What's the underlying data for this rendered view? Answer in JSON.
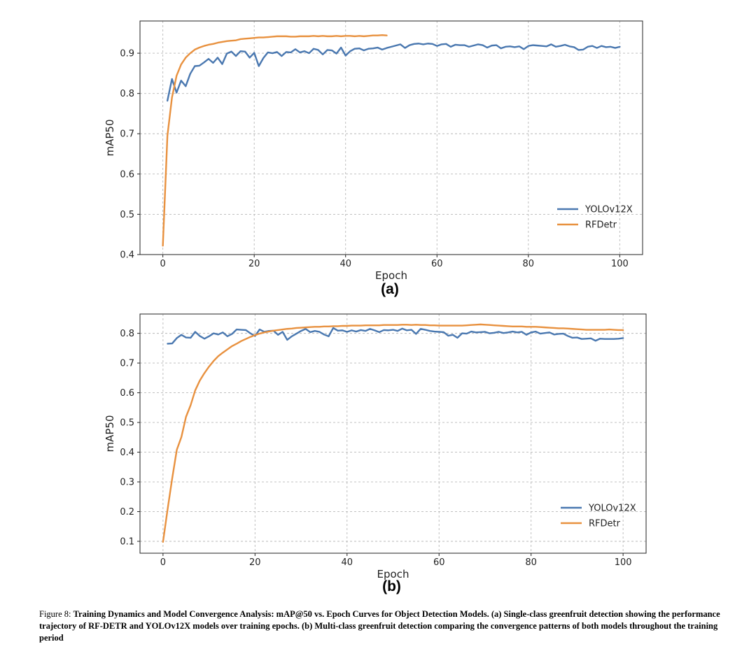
{
  "colors": {
    "yolo": "#4a78b0",
    "rfdetr": "#e8913f",
    "grid": "#b8b8b8",
    "axis": "#222222"
  },
  "chart_data": [
    {
      "type": "line",
      "panel_label": "(a)",
      "xlabel": "Epoch",
      "ylabel": "mAP50",
      "xlim": [
        -5,
        105
      ],
      "ylim": [
        0.4,
        0.98
      ],
      "xticks": [
        0,
        20,
        40,
        60,
        80,
        100
      ],
      "yticks": [
        0.4,
        0.5,
        0.6,
        0.7,
        0.8,
        0.9
      ],
      "ytick_labels": [
        "0.4",
        "0.5",
        "0.6",
        "0.7",
        "0.8",
        "0.9"
      ],
      "grid": true,
      "legend": "lower-right",
      "series": [
        {
          "name": "YOLOv12X",
          "x_start": 1,
          "values": [
            0.782,
            0.836,
            0.802,
            0.832,
            0.818,
            0.849,
            0.868,
            0.869,
            0.877,
            0.886,
            0.876,
            0.889,
            0.873,
            0.899,
            0.904,
            0.893,
            0.905,
            0.904,
            0.889,
            0.901,
            0.868,
            0.888,
            0.902,
            0.9,
            0.903,
            0.893,
            0.903,
            0.902,
            0.91,
            0.902,
            0.905,
            0.9,
            0.911,
            0.908,
            0.897,
            0.908,
            0.907,
            0.899,
            0.914,
            0.894,
            0.905,
            0.911,
            0.912,
            0.907,
            0.911,
            0.912,
            0.914,
            0.909,
            0.913,
            0.916,
            0.919,
            0.922,
            0.913,
            0.92,
            0.923,
            0.924,
            0.922,
            0.924,
            0.923,
            0.918,
            0.922,
            0.923,
            0.916,
            0.921,
            0.92,
            0.92,
            0.916,
            0.919,
            0.922,
            0.92,
            0.914,
            0.919,
            0.92,
            0.912,
            0.916,
            0.917,
            0.915,
            0.917,
            0.91,
            0.918,
            0.92,
            0.919,
            0.918,
            0.917,
            0.922,
            0.916,
            0.918,
            0.921,
            0.917,
            0.915,
            0.908,
            0.909,
            0.916,
            0.918,
            0.913,
            0.918,
            0.915,
            0.916,
            0.913,
            0.916
          ]
        },
        {
          "name": "RFDetr",
          "x_start": 0,
          "values": [
            0.422,
            0.695,
            0.79,
            0.844,
            0.872,
            0.889,
            0.9,
            0.909,
            0.914,
            0.918,
            0.921,
            0.923,
            0.926,
            0.928,
            0.93,
            0.931,
            0.932,
            0.935,
            0.936,
            0.937,
            0.938,
            0.939,
            0.939,
            0.94,
            0.941,
            0.942,
            0.942,
            0.942,
            0.941,
            0.941,
            0.942,
            0.942,
            0.942,
            0.943,
            0.942,
            0.943,
            0.942,
            0.942,
            0.943,
            0.942,
            0.943,
            0.943,
            0.942,
            0.943,
            0.942,
            0.943,
            0.944,
            0.944,
            0.945,
            0.944
          ]
        }
      ]
    },
    {
      "type": "line",
      "panel_label": "(b)",
      "xlabel": "Epoch",
      "ylabel": "mAP50",
      "xlim": [
        -5,
        105
      ],
      "ylim": [
        0.06,
        0.865
      ],
      "xticks": [
        0,
        20,
        40,
        60,
        80,
        100
      ],
      "yticks": [
        0.1,
        0.2,
        0.3,
        0.4,
        0.5,
        0.6,
        0.7,
        0.8
      ],
      "ytick_labels": [
        "0.1",
        "0.2",
        "0.3",
        "0.4",
        "0.5",
        "0.6",
        "0.7",
        "0.8"
      ],
      "grid": true,
      "legend": "lower-right",
      "series": [
        {
          "name": "YOLOv12X",
          "x_start": 1,
          "values": [
            0.765,
            0.766,
            0.784,
            0.795,
            0.786,
            0.785,
            0.805,
            0.791,
            0.782,
            0.79,
            0.8,
            0.796,
            0.803,
            0.79,
            0.798,
            0.813,
            0.812,
            0.811,
            0.8,
            0.791,
            0.813,
            0.805,
            0.808,
            0.809,
            0.795,
            0.805,
            0.778,
            0.79,
            0.799,
            0.808,
            0.815,
            0.804,
            0.808,
            0.805,
            0.796,
            0.79,
            0.818,
            0.809,
            0.81,
            0.805,
            0.81,
            0.806,
            0.811,
            0.808,
            0.815,
            0.81,
            0.804,
            0.811,
            0.81,
            0.812,
            0.808,
            0.816,
            0.81,
            0.812,
            0.798,
            0.815,
            0.812,
            0.808,
            0.806,
            0.805,
            0.804,
            0.792,
            0.795,
            0.785,
            0.8,
            0.799,
            0.806,
            0.803,
            0.804,
            0.805,
            0.8,
            0.802,
            0.805,
            0.801,
            0.803,
            0.806,
            0.803,
            0.805,
            0.795,
            0.803,
            0.806,
            0.799,
            0.801,
            0.803,
            0.796,
            0.798,
            0.799,
            0.791,
            0.785,
            0.786,
            0.781,
            0.782,
            0.783,
            0.775,
            0.782,
            0.781,
            0.781,
            0.781,
            0.782,
            0.784
          ]
        },
        {
          "name": "RFDetr",
          "x_start": 0,
          "values": [
            0.098,
            0.208,
            0.312,
            0.408,
            0.451,
            0.519,
            0.558,
            0.608,
            0.641,
            0.666,
            0.688,
            0.707,
            0.723,
            0.735,
            0.746,
            0.757,
            0.765,
            0.774,
            0.781,
            0.788,
            0.794,
            0.799,
            0.803,
            0.806,
            0.809,
            0.811,
            0.813,
            0.815,
            0.816,
            0.818,
            0.819,
            0.82,
            0.821,
            0.822,
            0.822,
            0.823,
            0.823,
            0.824,
            0.824,
            0.825,
            0.825,
            0.826,
            0.826,
            0.826,
            0.827,
            0.827,
            0.827,
            0.827,
            0.828,
            0.828,
            0.828,
            0.828,
            0.829,
            0.829,
            0.828,
            0.829,
            0.828,
            0.828,
            0.827,
            0.827,
            0.826,
            0.826,
            0.826,
            0.826,
            0.826,
            0.826,
            0.827,
            0.828,
            0.829,
            0.83,
            0.829,
            0.828,
            0.827,
            0.826,
            0.825,
            0.824,
            0.823,
            0.823,
            0.823,
            0.822,
            0.822,
            0.822,
            0.821,
            0.82,
            0.819,
            0.818,
            0.817,
            0.817,
            0.816,
            0.815,
            0.814,
            0.813,
            0.812,
            0.812,
            0.812,
            0.812,
            0.812,
            0.813,
            0.812,
            0.811,
            0.811
          ]
        }
      ]
    }
  ],
  "caption": {
    "prefix": "Figure 8: ",
    "text": "Training Dynamics and Model Convergence Analysis: mAP@50 vs. Epoch Curves for Object Detection Models. (a) Single-class greenfruit detection showing the performance trajectory of RF-DETR and YOLOv12X models over training epochs. (b) Multi-class greenfruit detection comparing the convergence patterns of both models throughout the training period"
  }
}
